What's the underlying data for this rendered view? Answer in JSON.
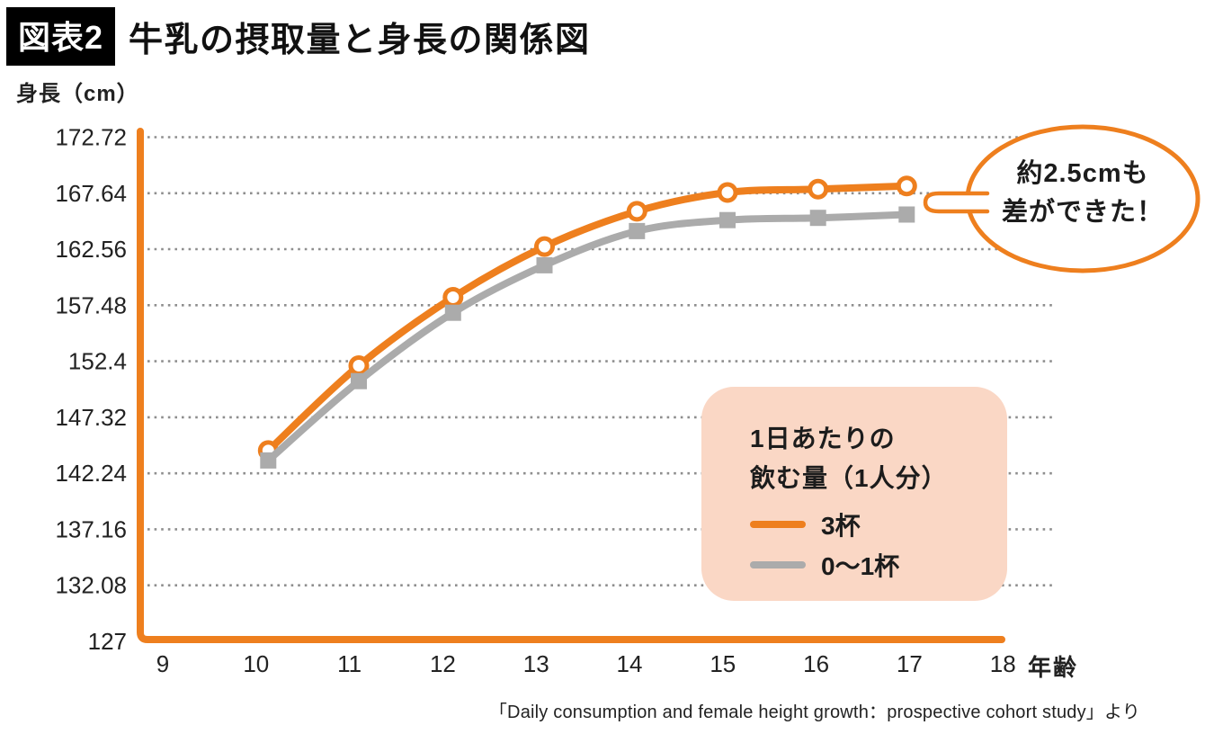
{
  "header": {
    "badge": "図表2",
    "title": "牛乳の摂取量と身長の関係図"
  },
  "y_axis_unit": "身長（cm）",
  "x_axis_unit": "年齢",
  "annotation": {
    "line1": "約2.5cmも",
    "line2": "差ができた！"
  },
  "legend": {
    "title_line1": "1日あたりの",
    "title_line2": "飲む量（1人分）",
    "background": "#FAD7C5",
    "items": [
      {
        "label": "3杯",
        "color": "#EE7F1E"
      },
      {
        "label": "0〜1杯",
        "color": "#ABABAB"
      }
    ]
  },
  "source": "「Daily consumption and female height growth：prospective cohort study」より",
  "colors": {
    "accent_orange": "#EE7F1E",
    "series_gray": "#ABABAB",
    "grid_dots": "#8E8E8E",
    "legend_bg": "#FAD7C5",
    "text_dark": "#1c1c1c"
  },
  "chart_data": {
    "type": "line",
    "title": "牛乳の摂取量と身長の関係図",
    "xlabel": "年齢",
    "ylabel": "身長（cm）",
    "grid": "dotted-horizontal",
    "legend_position": "inside-right-bottom",
    "x_axis": {
      "ticks": [
        9,
        10,
        11,
        12,
        13,
        14,
        15,
        16,
        17,
        18
      ],
      "range": [
        8.7,
        18.6
      ]
    },
    "y_axis": {
      "tick_labels": [
        "127",
        "132.08",
        "137.16",
        "142.24",
        "147.32",
        "152.4",
        "157.48",
        "162.56",
        "167.64",
        "172.72"
      ],
      "tick_values": [
        127,
        132.08,
        137.16,
        142.24,
        147.32,
        152.4,
        157.48,
        162.56,
        167.64,
        172.72
      ],
      "range": [
        127,
        174.5
      ]
    },
    "categories_ages": [
      10,
      11,
      12,
      13,
      14,
      15,
      16,
      17
    ],
    "plot_x": [
      10.13,
      11.1,
      12.11,
      13.09,
      14.08,
      15.05,
      16.02,
      16.97
    ],
    "series": [
      {
        "name": "3杯",
        "color": "#EE7F1E",
        "marker": "open-circle",
        "values": [
          144.3,
          152.0,
          158.2,
          162.8,
          166.0,
          167.7,
          168.0,
          168.3
        ]
      },
      {
        "name": "0〜1杯",
        "color": "#ABABAB",
        "marker": "filled-square",
        "values": [
          143.4,
          150.6,
          156.8,
          161.1,
          164.2,
          165.2,
          165.4,
          165.7
        ]
      }
    ],
    "annotation_text": "約2.5cmも差ができた！"
  }
}
